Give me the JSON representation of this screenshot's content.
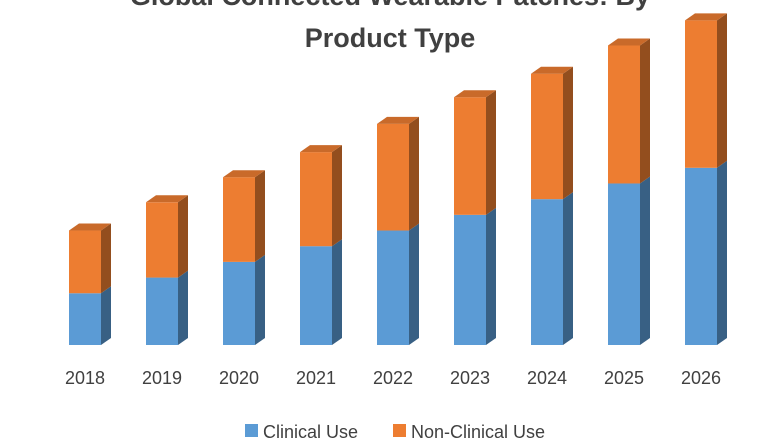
{
  "chart_data": {
    "type": "bar",
    "stacked": true,
    "three_d": true,
    "title_lines": [
      "Global Connected Wearable Patches: By",
      "Product Type"
    ],
    "categories": [
      "2018",
      "2019",
      "2020",
      "2021",
      "2022",
      "2023",
      "2024",
      "2025",
      "2026"
    ],
    "series": [
      {
        "name": "Clinical Use",
        "color": "#5b9bd5",
        "values": [
          33,
          43,
          53,
          63,
          73,
          83,
          93,
          103,
          113
        ]
      },
      {
        "name": "Non-Clinical Use",
        "color": "#ed7d31",
        "values": [
          40,
          48,
          54,
          60,
          68,
          75,
          80,
          88,
          94
        ]
      }
    ],
    "ylim": [
      0,
      220
    ],
    "legend_position": "bottom",
    "gridlines": false
  }
}
